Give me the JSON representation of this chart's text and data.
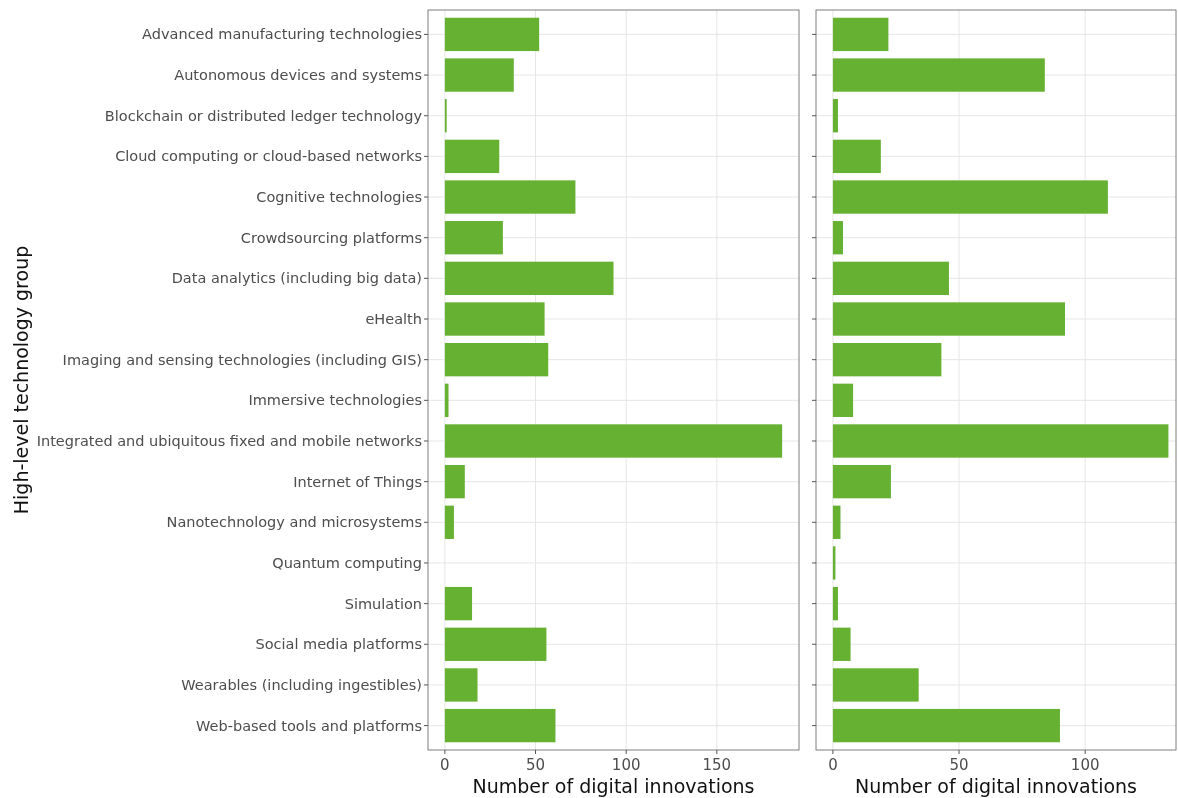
{
  "chart_data": [
    {
      "type": "bar",
      "orientation": "horizontal",
      "ylabel": "High-level technology group",
      "xlabel": "Number of digital innovations",
      "categories": [
        "Advanced manufacturing technologies",
        "Autonomous devices and systems",
        "Blockchain or distributed ledger technology",
        "Cloud computing or cloud-based networks",
        "Cognitive technologies",
        "Crowdsourcing platforms",
        "Data analytics (including big data)",
        "eHealth",
        "Imaging and sensing technologies (including GIS)",
        "Immersive technologies",
        "Integrated and ubiquitous fixed and mobile networks",
        "Internet of Things",
        "Nanotechnology and microsystems",
        "Quantum computing",
        "Simulation",
        "Social media platforms",
        "Wearables (including ingestibles)",
        "Web-based tools and platforms"
      ],
      "values": [
        52,
        38,
        1,
        30,
        72,
        32,
        93,
        55,
        57,
        2,
        186,
        11,
        5,
        0,
        15,
        56,
        18,
        61
      ],
      "color": "#66b132",
      "xlim": [
        -9.3,
        195.3
      ],
      "xticks": [
        0,
        50,
        100,
        150
      ],
      "grid": true
    },
    {
      "type": "bar",
      "orientation": "horizontal",
      "xlabel": "Number of digital innovations",
      "categories": [
        null,
        null,
        null,
        null,
        null,
        null,
        null,
        null,
        null,
        null,
        null,
        null,
        null,
        null,
        null,
        null,
        null,
        null
      ],
      "values": [
        22,
        84,
        2,
        19,
        109,
        4,
        46,
        92,
        43,
        8,
        133,
        23,
        3,
        1,
        2,
        7,
        34,
        90
      ],
      "color": "#66b132",
      "xlim": [
        -6.7,
        136
      ],
      "xticks": [
        0,
        50,
        100
      ],
      "grid": true,
      "tick_labels": "x"
    }
  ]
}
